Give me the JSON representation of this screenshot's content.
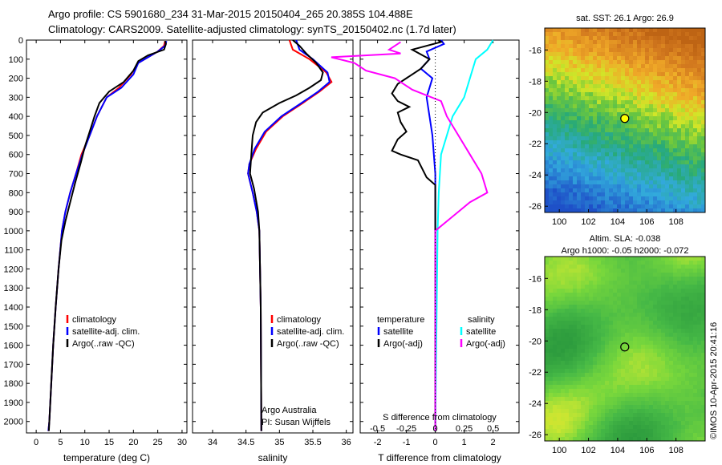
{
  "header": {
    "line1": "Argo profile: CS 5901680_234 31-Mar-2015 20150404_265 20.385S 104.488E",
    "line2": "Climatology: CARS2009. Satellite-adjusted climatology: synTS_20150402.nc (1.7d later)"
  },
  "credit": "©IMOS 10-Apr-2015 20:41:16",
  "colors": {
    "climatology": "#ff0000",
    "satellite": "#0000ff",
    "argo": "#000000",
    "sat_salinity": "#00ffff",
    "argo_salinity": "#ff00ff"
  },
  "chart_data": [
    {
      "type": "line",
      "id": "temperature",
      "xlabel": "temperature (deg C)",
      "xlim": [
        -2,
        31
      ],
      "xticks": [
        0,
        5,
        10,
        15,
        20,
        25,
        30
      ],
      "ylim": [
        2060,
        0
      ],
      "yticks": [
        0,
        100,
        200,
        300,
        400,
        500,
        600,
        700,
        800,
        900,
        1000,
        1100,
        1200,
        1300,
        1400,
        1500,
        1600,
        1700,
        1800,
        1900,
        2000
      ],
      "legend": [
        "climatology",
        "satellite-adj. clim.",
        "Argo(..raw -QC)"
      ],
      "series": [
        {
          "name": "climatology",
          "color": "#ff0000",
          "points": [
            [
              26.5,
              5
            ],
            [
              26.3,
              30
            ],
            [
              25,
              60
            ],
            [
              21,
              120
            ],
            [
              19.5,
              180
            ],
            [
              17,
              250
            ],
            [
              14.5,
              300
            ],
            [
              12.5,
              400
            ],
            [
              11,
              500
            ],
            [
              9.3,
              600
            ],
            [
              8.2,
              700
            ],
            [
              7,
              800
            ],
            [
              6,
              900
            ],
            [
              5.3,
              1000
            ],
            [
              4.6,
              1200
            ],
            [
              4,
              1400
            ],
            [
              3.5,
              1600
            ],
            [
              3.1,
              1800
            ],
            [
              2.7,
              2000
            ],
            [
              2.5,
              2050
            ]
          ]
        },
        {
          "name": "satellite-adj. clim.",
          "color": "#0000ff",
          "points": [
            [
              26.8,
              5
            ],
            [
              26.5,
              30
            ],
            [
              25,
              60
            ],
            [
              21,
              120
            ],
            [
              20,
              180
            ],
            [
              17.5,
              250
            ],
            [
              14.5,
              300
            ],
            [
              12.5,
              400
            ],
            [
              11,
              500
            ],
            [
              9.5,
              600
            ],
            [
              8.2,
              700
            ],
            [
              7,
              800
            ],
            [
              6,
              900
            ],
            [
              5.3,
              1000
            ],
            [
              4.6,
              1200
            ],
            [
              4,
              1400
            ],
            [
              3.5,
              1600
            ],
            [
              3.1,
              1800
            ],
            [
              2.7,
              2000
            ],
            [
              2.5,
              2050
            ]
          ]
        },
        {
          "name": "Argo(..raw -QC)",
          "color": "#000000",
          "points": [
            [
              26.5,
              5
            ],
            [
              26.7,
              20
            ],
            [
              26.3,
              50
            ],
            [
              23,
              80
            ],
            [
              21,
              110
            ],
            [
              20,
              160
            ],
            [
              18,
              220
            ],
            [
              15,
              270
            ],
            [
              13,
              330
            ],
            [
              12,
              400
            ],
            [
              11,
              480
            ],
            [
              10,
              560
            ],
            [
              9.2,
              640
            ],
            [
              8,
              750
            ],
            [
              7,
              850
            ],
            [
              6,
              950
            ],
            [
              5.2,
              1050
            ],
            [
              4.6,
              1200
            ],
            [
              4,
              1400
            ],
            [
              3.5,
              1600
            ],
            [
              3.1,
              1800
            ],
            [
              2.7,
              2000
            ],
            [
              2.6,
              2050
            ]
          ]
        }
      ]
    },
    {
      "type": "line",
      "id": "salinity",
      "xlabel": "salinity",
      "xlim": [
        33.7,
        36.1
      ],
      "xticks": [
        34,
        34.5,
        35,
        35.5,
        36
      ],
      "ylim": [
        2060,
        0
      ],
      "legend": [
        "climatology",
        "satellite-adj. clim.",
        "Argo(..raw -QC)"
      ],
      "annotation": [
        "Argo Australia",
        "PI: Susan Wijffels"
      ],
      "series": [
        {
          "name": "climatology",
          "color": "#ff0000",
          "points": [
            [
              35.15,
              0
            ],
            [
              35.2,
              50
            ],
            [
              35.45,
              100
            ],
            [
              35.7,
              170
            ],
            [
              35.78,
              220
            ],
            [
              35.6,
              270
            ],
            [
              35.35,
              330
            ],
            [
              35.05,
              400
            ],
            [
              34.8,
              480
            ],
            [
              34.65,
              570
            ],
            [
              34.55,
              650
            ],
            [
              34.53,
              700
            ],
            [
              34.6,
              800
            ],
            [
              34.66,
              900
            ],
            [
              34.7,
              1000
            ],
            [
              34.72,
              1400
            ],
            [
              34.73,
              2050
            ]
          ]
        },
        {
          "name": "satellite-adj. clim.",
          "color": "#0000ff",
          "points": [
            [
              35.25,
              0
            ],
            [
              35.3,
              50
            ],
            [
              35.5,
              100
            ],
            [
              35.72,
              170
            ],
            [
              35.75,
              220
            ],
            [
              35.58,
              270
            ],
            [
              35.33,
              330
            ],
            [
              35.03,
              400
            ],
            [
              34.78,
              480
            ],
            [
              34.63,
              570
            ],
            [
              34.55,
              650
            ],
            [
              34.53,
              700
            ],
            [
              34.6,
              800
            ],
            [
              34.66,
              900
            ],
            [
              34.7,
              1000
            ],
            [
              34.72,
              1400
            ],
            [
              34.73,
              2050
            ]
          ]
        },
        {
          "name": "Argo(..raw -QC)",
          "color": "#000000",
          "points": [
            [
              35.2,
              0
            ],
            [
              35.3,
              30
            ],
            [
              35.4,
              70
            ],
            [
              35.55,
              120
            ],
            [
              35.65,
              170
            ],
            [
              35.62,
              210
            ],
            [
              35.45,
              250
            ],
            [
              35.25,
              290
            ],
            [
              35.0,
              330
            ],
            [
              34.75,
              380
            ],
            [
              34.65,
              430
            ],
            [
              34.6,
              500
            ],
            [
              34.58,
              600
            ],
            [
              34.56,
              700
            ],
            [
              34.62,
              780
            ],
            [
              34.68,
              900
            ],
            [
              34.7,
              1000
            ],
            [
              34.72,
              1400
            ],
            [
              34.73,
              2050
            ]
          ]
        }
      ]
    },
    {
      "type": "line",
      "id": "difference",
      "xlabel": "T difference from climatology",
      "xlabel_top": "S difference from climatology",
      "xlim": [
        -2.6,
        2.9
      ],
      "xticks": [
        -2,
        -1,
        0,
        1,
        2
      ],
      "xticks_S": [
        "-0.5",
        "-0.25",
        "0",
        "0.25",
        "0.5"
      ],
      "ylim": [
        2060,
        0
      ],
      "legend_left_title": "temperature",
      "legend_right_title": "salinity",
      "legend": [
        "satellite",
        "Argo(-adj)",
        "satellite",
        "Argo(-adj)"
      ],
      "series": [
        {
          "name": "satellite",
          "quantity": "temperature",
          "color": "#0000ff",
          "points": [
            [
              0.2,
              0
            ],
            [
              0.3,
              20
            ],
            [
              -0.3,
              60
            ],
            [
              -0.2,
              100
            ],
            [
              -0.5,
              150
            ],
            [
              -0.1,
              200
            ],
            [
              -0.3,
              300
            ],
            [
              -0.2,
              400
            ],
            [
              -0.1,
              500
            ],
            [
              0,
              700
            ],
            [
              0,
              1000
            ],
            [
              0,
              2050
            ]
          ]
        },
        {
          "name": "Argo(-adj)",
          "quantity": "temperature",
          "color": "#000000",
          "points": [
            [
              0.1,
              0
            ],
            [
              0.2,
              10
            ],
            [
              -0.8,
              50
            ],
            [
              -0.2,
              100
            ],
            [
              -0.5,
              150
            ],
            [
              -1.3,
              230
            ],
            [
              -1.5,
              280
            ],
            [
              -1.3,
              320
            ],
            [
              -0.9,
              350
            ],
            [
              -1.3,
              380
            ],
            [
              -1.2,
              430
            ],
            [
              -1.0,
              480
            ],
            [
              -1.3,
              520
            ],
            [
              -1.5,
              580
            ],
            [
              -1.2,
              600
            ],
            [
              -0.6,
              630
            ],
            [
              -0.3,
              720
            ],
            [
              0,
              760
            ],
            [
              0,
              800
            ],
            [
              0,
              2050
            ]
          ]
        },
        {
          "name": "satellite",
          "quantity": "salinity",
          "color": "#00ffff",
          "points": [
            [
              0.5,
              0
            ],
            [
              0.45,
              50
            ],
            [
              0.35,
              100
            ],
            [
              0.3,
              200
            ],
            [
              0.25,
              300
            ],
            [
              0.15,
              400
            ],
            [
              0.1,
              500
            ],
            [
              0.05,
              600
            ],
            [
              0.03,
              800
            ],
            [
              0.02,
              1000
            ],
            [
              0,
              2050
            ]
          ]
        },
        {
          "name": "Argo(-adj)",
          "quantity": "salinity",
          "color": "#ff00ff",
          "points": [
            [
              -0.3,
              10
            ],
            [
              -0.4,
              50
            ],
            [
              -0.3,
              70
            ],
            [
              -0.9,
              90
            ],
            [
              -0.7,
              120
            ],
            [
              -0.6,
              160
            ],
            [
              -0.35,
              200
            ],
            [
              -0.2,
              260
            ],
            [
              0.05,
              320
            ],
            [
              0.1,
              400
            ],
            [
              0.2,
              500
            ],
            [
              0.3,
              600
            ],
            [
              0.4,
              700
            ],
            [
              0.45,
              800
            ],
            [
              0.3,
              850
            ],
            [
              0.2,
              900
            ],
            [
              0.1,
              950
            ],
            [
              0,
              1000
            ],
            [
              0,
              2050
            ]
          ]
        }
      ]
    },
    {
      "type": "heatmap",
      "id": "sst_map",
      "title": "sat. SST: 26.1  Argo: 26.9",
      "xlim": [
        99,
        110
      ],
      "xticks": [
        100,
        102,
        104,
        106,
        108
      ],
      "ylim": [
        -26.4,
        -14.6
      ],
      "yticks": [
        -16,
        -18,
        -20,
        -22,
        -24,
        -26
      ],
      "float_position": [
        104.488,
        -20.385
      ]
    },
    {
      "type": "heatmap",
      "id": "sla_map",
      "title": "Altim. SLA: -0.038",
      "subtitle": "Argo h1000: -0.05  h2000: -0.072",
      "xlim": [
        99,
        110
      ],
      "xticks": [
        100,
        102,
        104,
        106,
        108
      ],
      "ylim": [
        -26.4,
        -14.6
      ],
      "yticks": [
        -16,
        -18,
        -20,
        -22,
        -24,
        -26
      ],
      "float_position": [
        104.488,
        -20.385
      ]
    }
  ]
}
